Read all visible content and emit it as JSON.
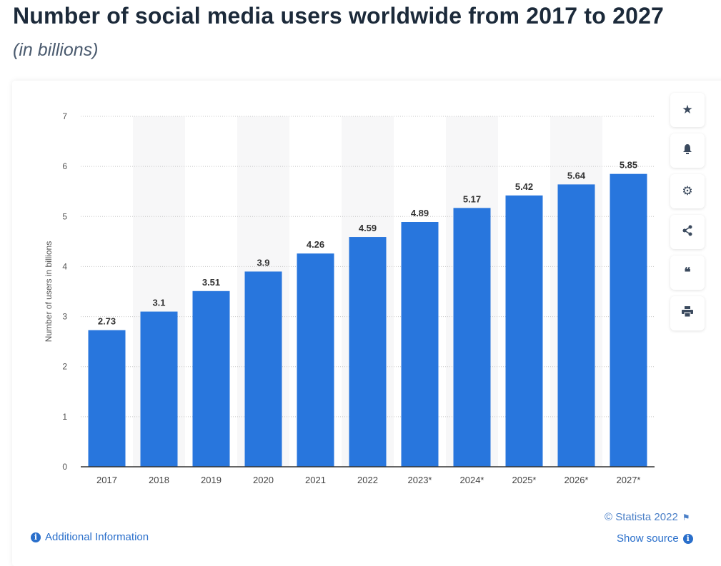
{
  "header": {
    "title": "Number of social media users worldwide from 2017 to 2027",
    "subtitle": "(in billions)"
  },
  "chart_data": {
    "type": "bar",
    "categories": [
      "2017",
      "2018",
      "2019",
      "2020",
      "2021",
      "2022",
      "2023*",
      "2024*",
      "2025*",
      "2026*",
      "2027*"
    ],
    "values": [
      2.73,
      3.1,
      3.51,
      3.9,
      4.26,
      4.59,
      4.89,
      5.17,
      5.42,
      5.64,
      5.85
    ],
    "data_labels": [
      "2.73",
      "3.1",
      "3.51",
      "3.9",
      "4.26",
      "4.59",
      "4.89",
      "5.17",
      "5.42",
      "5.64",
      "5.85"
    ],
    "title": "",
    "xlabel": "",
    "ylabel": "Number of users in billions",
    "ylim": [
      0,
      7
    ],
    "yticks": [
      "0",
      "1",
      "2",
      "3",
      "4",
      "5",
      "6",
      "7"
    ],
    "grid": true,
    "bar_color": "#2876dd"
  },
  "toolbar": {
    "items": [
      {
        "icon": "star-icon",
        "glyph": "★"
      },
      {
        "icon": "bell-icon",
        "glyph": "🔔"
      },
      {
        "icon": "gear-icon",
        "glyph": "⚙"
      },
      {
        "icon": "share-icon",
        "glyph": "<"
      },
      {
        "icon": "quote-icon",
        "glyph": "❝"
      },
      {
        "icon": "print-icon",
        "glyph": "⎙"
      }
    ]
  },
  "footer": {
    "copyright": "© Statista 2022",
    "show_source": "Show source",
    "additional_info": "Additional Information"
  }
}
